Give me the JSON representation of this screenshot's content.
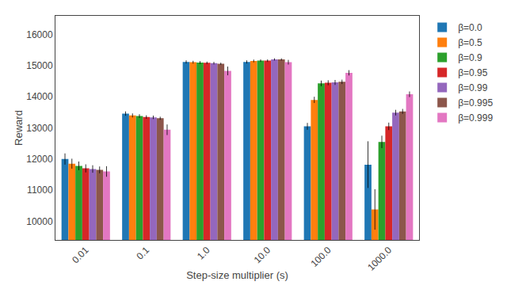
{
  "chart_data": {
    "type": "bar",
    "xlabel": "Step-size multiplier (s)",
    "ylabel": "Reward",
    "categories": [
      "0.01",
      "0.1",
      "1.0",
      "10.0",
      "100.0",
      "1000.0"
    ],
    "series": [
      {
        "name": "β=0.0",
        "color": "#1f77b4",
        "values": [
          12000,
          13460,
          15120,
          15120,
          13050,
          11820
        ],
        "errors": [
          180,
          70,
          50,
          50,
          110,
          750
        ]
      },
      {
        "name": "β=0.5",
        "color": "#ff7f0e",
        "values": [
          11850,
          13400,
          15110,
          15150,
          13900,
          10380
        ],
        "errors": [
          160,
          65,
          45,
          45,
          100,
          650
        ]
      },
      {
        "name": "β=0.9",
        "color": "#2ca02c",
        "values": [
          11780,
          13380,
          15100,
          15160,
          14430,
          12550
        ],
        "errors": [
          140,
          60,
          45,
          40,
          90,
          200
        ]
      },
      {
        "name": "β=0.95",
        "color": "#d62728",
        "values": [
          11700,
          13350,
          15090,
          15160,
          14450,
          13050
        ],
        "errors": [
          130,
          55,
          40,
          40,
          80,
          120
        ]
      },
      {
        "name": "β=0.99",
        "color": "#9467bd",
        "values": [
          11680,
          13340,
          15080,
          15200,
          14460,
          13490
        ],
        "errors": [
          120,
          55,
          40,
          35,
          80,
          90
        ]
      },
      {
        "name": "β=0.995",
        "color": "#8c564b",
        "values": [
          11650,
          13310,
          15060,
          15200,
          14480,
          13530
        ],
        "errors": [
          110,
          50,
          35,
          35,
          70,
          80
        ]
      },
      {
        "name": "β=0.999",
        "color": "#e377c2",
        "values": [
          11600,
          12940,
          14830,
          15110,
          14770,
          14080
        ],
        "errors": [
          170,
          170,
          140,
          75,
          85,
          90
        ]
      }
    ],
    "ylim": [
      9400,
      16600
    ],
    "yticks": [
      10000,
      11000,
      12000,
      13000,
      14000,
      15000,
      16000
    ],
    "grid": false,
    "legend": "right"
  }
}
